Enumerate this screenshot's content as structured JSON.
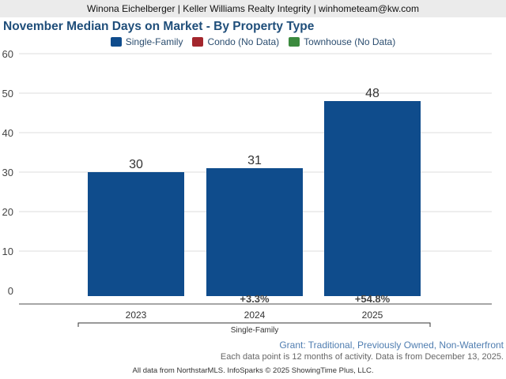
{
  "header": {
    "text": "Winona Eichelberger | Keller Williams Realty Integrity | winhometeam@kw.com"
  },
  "legend": [
    {
      "label": "Single-Family",
      "color": "#0f4c8c"
    },
    {
      "label": "Condo (No Data)",
      "color": "#a3262d"
    },
    {
      "label": "Townhouse (No Data)",
      "color": "#3b8a3e"
    }
  ],
  "chart_data": {
    "type": "bar",
    "title": "November Median Days on Market - By Property Type",
    "categories": [
      "2023",
      "2024",
      "2025"
    ],
    "series": [
      {
        "name": "Single-Family",
        "values": [
          30,
          31,
          48
        ],
        "color": "#0f4c8c"
      }
    ],
    "changes": [
      "",
      "+3.3%",
      "+54.8%"
    ],
    "group_label": "Single-Family",
    "ylim": [
      0,
      60
    ],
    "yticks": [
      0,
      10,
      20,
      30,
      40,
      50,
      60
    ],
    "grid": true,
    "legend_position": "top"
  },
  "subset_label": "Grant: Traditional, Previously Owned, Non-Waterfront",
  "footnote": "Each data point is 12 months of activity. Data is from December 13, 2025.",
  "source": "All data from NorthstarMLS. InfoSparks © 2025 ShowingTime Plus, LLC."
}
